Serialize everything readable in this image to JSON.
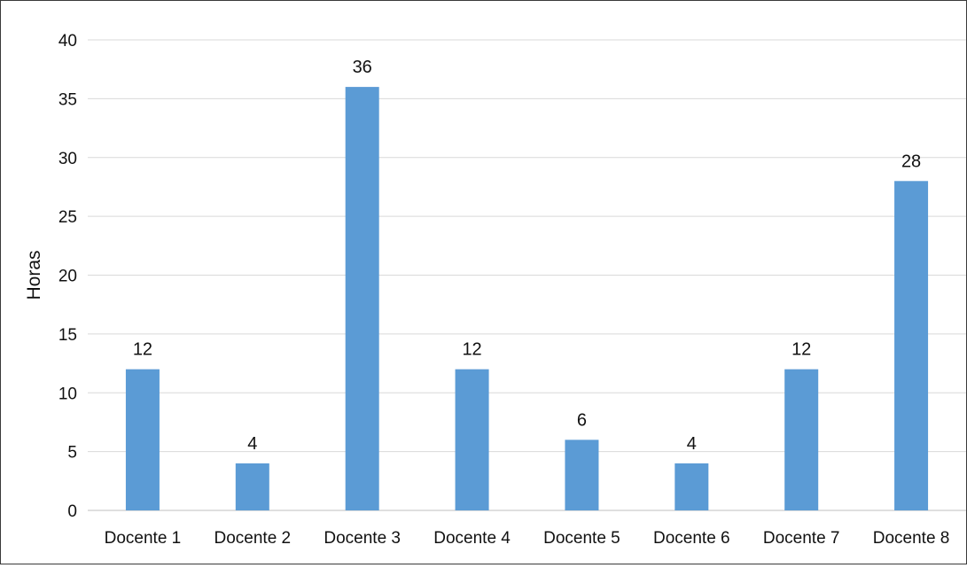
{
  "chart_data": {
    "type": "bar",
    "title": "",
    "xlabel": "",
    "ylabel": "Horas",
    "categories": [
      "Docente 1",
      "Docente 2",
      "Docente 3",
      "Docente 4",
      "Docente 5",
      "Docente 6",
      "Docente 7",
      "Docente 8"
    ],
    "values": [
      12,
      4,
      36,
      12,
      6,
      4,
      12,
      28
    ],
    "data_labels": [
      "12",
      "4",
      "36",
      "12",
      "6",
      "4",
      "12",
      "28"
    ],
    "ylim": [
      0,
      40
    ],
    "yticks": [
      0,
      5,
      10,
      15,
      20,
      25,
      30,
      35,
      40
    ],
    "grid": true,
    "legend": "none",
    "colors": {
      "bar": "#5b9bd5",
      "grid": "#d9d9d9",
      "axis": "#bfbfbf",
      "text": "#111111"
    }
  }
}
